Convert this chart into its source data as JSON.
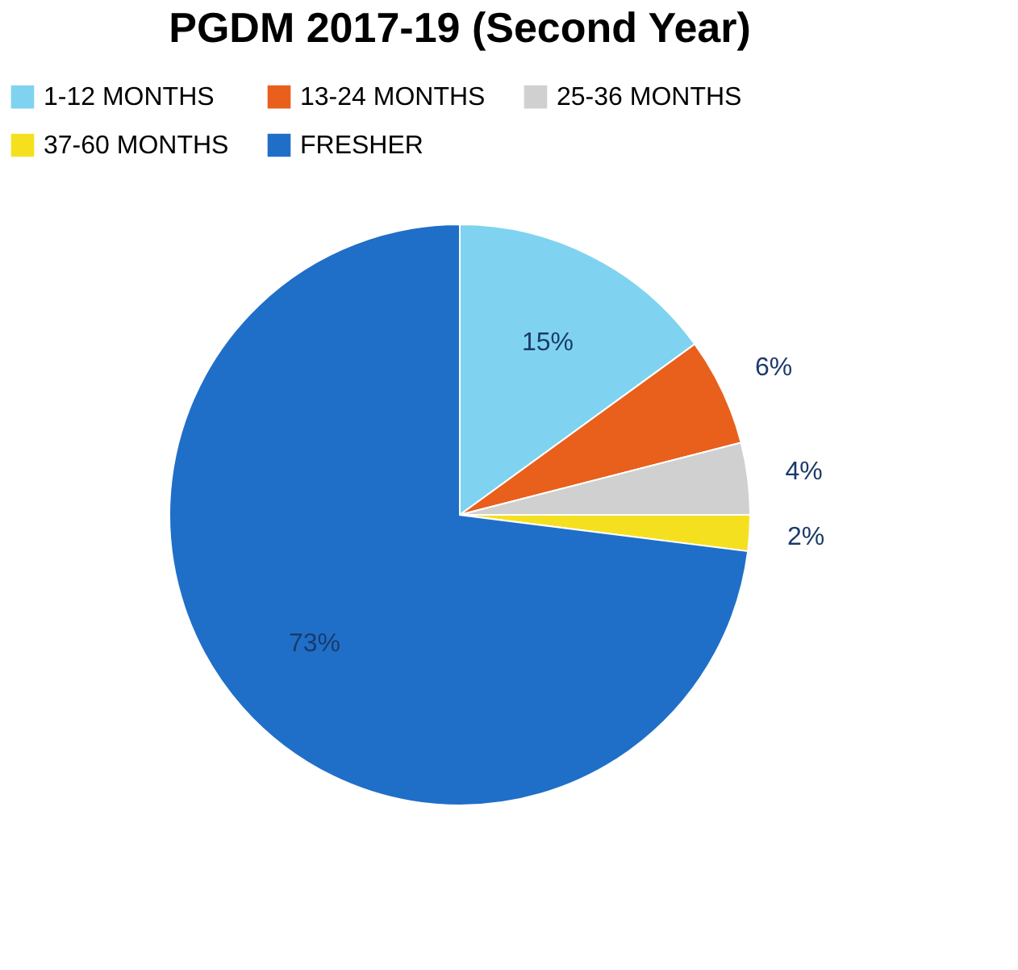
{
  "chart_data": {
    "type": "pie",
    "title": "PGDM 2017-19 (Second Year)",
    "categories": [
      "1-12 MONTHS",
      "13-24 MONTHS",
      "25-36 MONTHS",
      "37-60 MONTHS",
      "FRESHER"
    ],
    "values": [
      15,
      6,
      4,
      2,
      73
    ],
    "colors": [
      "#7fd3f0",
      "#e8601c",
      "#d0d0d0",
      "#f5e020",
      "#1f6fc8"
    ],
    "value_labels": [
      "15%",
      "6%",
      "4%",
      "2%",
      "73%"
    ],
    "legend": "top"
  }
}
